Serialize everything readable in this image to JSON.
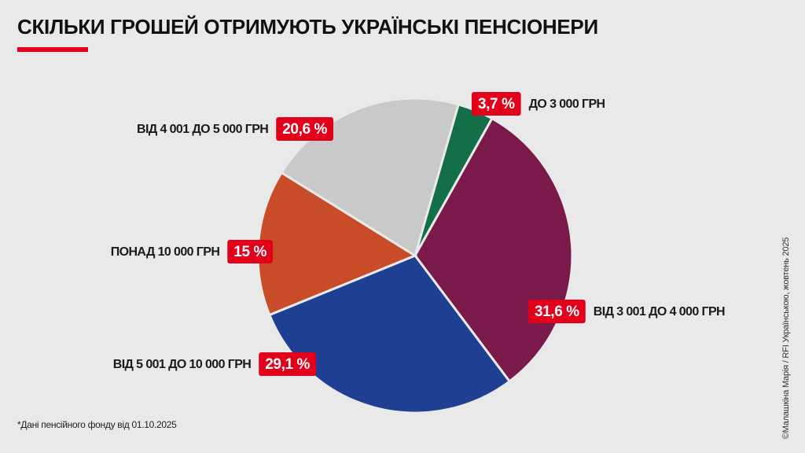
{
  "chart_data": {
    "type": "pie",
    "title": "СКІЛЬКИ ГРОШЕЙ ОТРИМУЮТЬ УКРАЇНСЬКІ ПЕНСІОНЕРИ",
    "categories": [
      "ДО 3 000 ГРН",
      "ВІД 3 001 ДО 4 000 ГРН",
      "ВІД 5 001 ДО 10 000 ГРН",
      "ПОНАД 10 000 ГРН",
      "ВІД 4 001 ДО 5 000 ГРН"
    ],
    "values": [
      3.7,
      31.6,
      29.1,
      15,
      20.6
    ],
    "value_labels": [
      "3,7 %",
      "31,6 %",
      "29,1 %",
      "15 %",
      "20,6 %"
    ],
    "colors": [
      "#136f47",
      "#7a1a4b",
      "#1f3f93",
      "#c84c27",
      "#c9c9c9"
    ],
    "note": "*Дані пенсійного фонду від 01.10.2025",
    "credit": "©Малашкіна Марія / RFI Українською, жовтень 2025"
  }
}
